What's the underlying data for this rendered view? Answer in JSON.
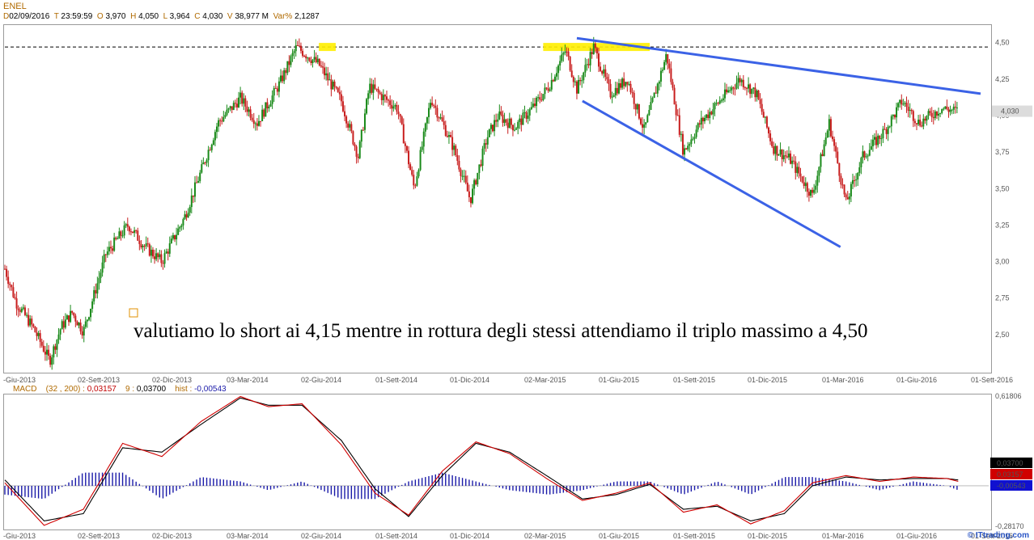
{
  "header": {
    "symbol": "ENEL",
    "d_key": "D",
    "date": "02/09/2016",
    "t_key": "T",
    "time": "23:59:59",
    "o_key": "O",
    "open": "3,970",
    "h_key": "H",
    "high": "4,050",
    "l_key": "L",
    "low": "3,964",
    "c_key": "C",
    "close": "4,030",
    "v_key": "V",
    "volume": "38,977 M",
    "var_key": "Var%",
    "var": "2,1287"
  },
  "macd_header": {
    "name": "MACD",
    "params": "(32 , 200) :",
    "macd_value": "0,03157",
    "signal_label": "9 :",
    "signal_value": "0,03700",
    "hist_label": "hist :",
    "hist_value": "-0,00543"
  },
  "annotation": "valutiamo lo short ai 4,15 mentre in rottura degli stessi attendiamo il triplo massimo a 4,50",
  "credit": "© ITtrading.com",
  "chart_data": [
    {
      "type": "candlestick",
      "title": "ENEL",
      "ylim": [
        2.25,
        4.62
      ],
      "price_ticks": [
        "4,50",
        "4,25",
        "4,00",
        "3,75",
        "3,50",
        "3,25",
        "3,00",
        "2,75",
        "2,50"
      ],
      "price_tick_values": [
        4.5,
        4.25,
        4.0,
        3.75,
        3.5,
        3.25,
        3.0,
        2.75,
        2.5
      ],
      "x_labels": [
        "-Giu-2013",
        "02-Sett-2013",
        "02-Dic-2013",
        "03-Mar-2014",
        "02-Giu-2014",
        "01-Sett-2014",
        "01-Dic-2014",
        "02-Mar-2015",
        "01-Giu-2015",
        "01-Sett-2015",
        "01-Dic-2015",
        "01-Mar-2016",
        "01-Giu-2016",
        "01-Sett-2016"
      ],
      "last_price_label": "4,030",
      "last_price": 4.03,
      "resistance_level": 4.47,
      "series": [
        {
          "name": "ENEL",
          "x": [
            0,
            2,
            5,
            8,
            10,
            12,
            14,
            18,
            22,
            25,
            28,
            32,
            35,
            38,
            42,
            45,
            49,
            52,
            56,
            60,
            63,
            65,
            70,
            73,
            76,
            80,
            83,
            86,
            88,
            91,
            94,
            97,
            100,
            102,
            105,
            108,
            111,
            114,
            118,
            121,
            124,
            127,
            131,
            134,
            137,
            140,
            144,
            147,
            150,
            153,
            157,
            160,
            163,
            167,
            170
          ],
          "close": [
            2.95,
            2.72,
            2.55,
            2.32,
            2.55,
            2.65,
            2.52,
            3.05,
            3.25,
            3.1,
            3.0,
            3.3,
            3.62,
            3.95,
            4.12,
            3.95,
            4.22,
            4.47,
            4.35,
            4.1,
            3.72,
            4.2,
            4.05,
            3.5,
            4.12,
            3.78,
            3.42,
            3.85,
            4.0,
            3.92,
            4.05,
            4.2,
            4.45,
            4.18,
            4.47,
            4.15,
            4.25,
            3.9,
            4.42,
            3.75,
            3.95,
            4.08,
            4.25,
            4.15,
            3.78,
            3.7,
            3.45,
            3.95,
            3.4,
            3.72,
            3.9,
            4.1,
            3.95,
            4.05,
            4.03
          ],
          "trend_lines": {
            "upper": [
              {
                "x": 102,
                "y": 4.53
              },
              {
                "x": 174,
                "y": 4.15
              }
            ],
            "lower": [
              {
                "x": 103,
                "y": 4.1
              },
              {
                "x": 149,
                "y": 3.1
              }
            ]
          }
        }
      ],
      "highlights": [
        {
          "x0": 56,
          "x1": 59,
          "y": 4.47
        },
        {
          "x0": 96,
          "x1": 115,
          "y": 4.47
        }
      ]
    },
    {
      "type": "line",
      "title": "MACD",
      "ylim": [
        -0.2817,
        0.61806
      ],
      "y_ticks": [
        "0,61806",
        "-0,28170"
      ],
      "tag_values": [
        "0,03700",
        "0,03157",
        "-0,00543"
      ],
      "tag_colors": [
        "#000000",
        "#d00000",
        "#1010d0"
      ],
      "series": [
        {
          "name": "MACD",
          "color": "#d00000",
          "x": [
            0,
            7,
            14,
            21,
            28,
            35,
            42,
            47,
            53,
            60,
            66,
            72,
            78,
            84,
            90,
            97,
            103,
            109,
            115,
            121,
            127,
            133,
            139,
            144,
            150,
            156,
            162,
            168,
            170
          ],
          "y": [
            0.02,
            -0.27,
            -0.16,
            0.29,
            0.2,
            0.44,
            0.61,
            0.54,
            0.56,
            0.28,
            -0.05,
            -0.2,
            0.1,
            0.3,
            0.22,
            0.04,
            -0.1,
            -0.05,
            0.02,
            -0.18,
            -0.13,
            -0.26,
            -0.17,
            0.02,
            0.07,
            0.03,
            0.06,
            0.05,
            0.03
          ]
        },
        {
          "name": "Signal",
          "color": "#000000",
          "x": [
            0,
            7,
            14,
            21,
            28,
            35,
            42,
            47,
            53,
            60,
            66,
            72,
            78,
            84,
            90,
            97,
            103,
            109,
            115,
            121,
            127,
            133,
            139,
            144,
            150,
            156,
            162,
            168,
            170
          ],
          "y": [
            0.04,
            -0.24,
            -0.19,
            0.26,
            0.23,
            0.42,
            0.6,
            0.55,
            0.55,
            0.31,
            -0.02,
            -0.21,
            0.07,
            0.29,
            0.23,
            0.06,
            -0.09,
            -0.06,
            0.01,
            -0.16,
            -0.14,
            -0.24,
            -0.19,
            0.0,
            0.06,
            0.04,
            0.05,
            0.05,
            0.04
          ]
        }
      ]
    }
  ],
  "colors": {
    "up": "#1a8a1a",
    "down": "#c81e1e",
    "trend": "#3b62e6",
    "highlight": "#ffee00",
    "hist": "#1a1aa8"
  }
}
